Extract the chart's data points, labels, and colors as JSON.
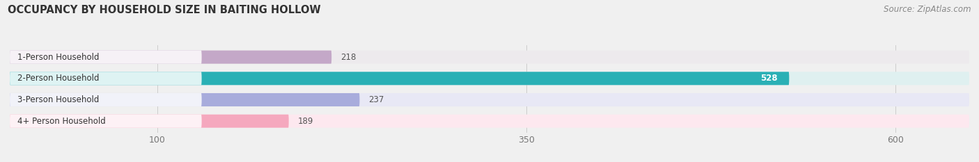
{
  "title": "OCCUPANCY BY HOUSEHOLD SIZE IN BAITING HOLLOW",
  "source": "Source: ZipAtlas.com",
  "categories": [
    "1-Person Household",
    "2-Person Household",
    "3-Person Household",
    "4+ Person Household"
  ],
  "values": [
    218,
    528,
    237,
    189
  ],
  "bar_colors": [
    "#c4a8c8",
    "#2ab0b5",
    "#a8acdc",
    "#f5a8be"
  ],
  "bar_bg_colors": [
    "#edeaed",
    "#dff0f0",
    "#e8e8f5",
    "#fde8ef"
  ],
  "label_colors": [
    "#444444",
    "#ffffff",
    "#444444",
    "#444444"
  ],
  "x_ticks": [
    100,
    350,
    600
  ],
  "x_min": 0,
  "x_max": 650,
  "title_fontsize": 10.5,
  "source_fontsize": 8.5,
  "bar_label_fontsize": 8.5,
  "value_label_fontsize": 8.5,
  "tick_fontsize": 9,
  "figsize": [
    14.06,
    2.33
  ],
  "dpi": 100,
  "bg_color": "#f0f0f0"
}
